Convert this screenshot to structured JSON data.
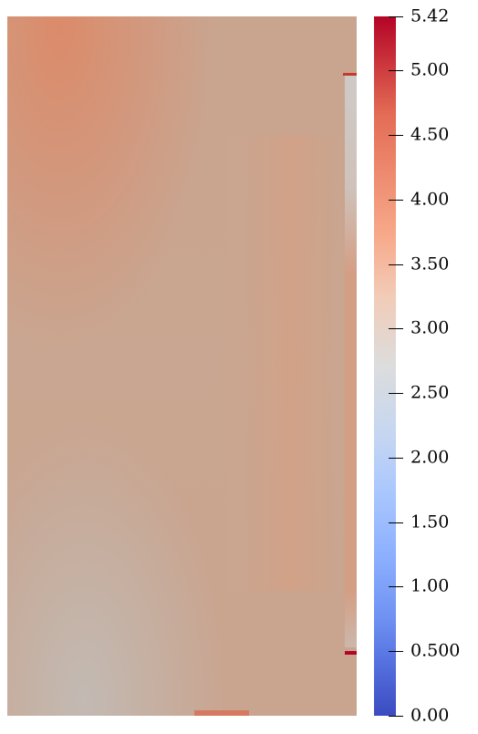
{
  "colorbar": {
    "ticks": [
      {
        "label": "5.42",
        "value": 5.42
      },
      {
        "label": "5.00",
        "value": 5.0
      },
      {
        "label": "4.50",
        "value": 4.5
      },
      {
        "label": "4.00",
        "value": 4.0
      },
      {
        "label": "3.50",
        "value": 3.5
      },
      {
        "label": "3.00",
        "value": 3.0
      },
      {
        "label": "2.50",
        "value": 2.5
      },
      {
        "label": "2.00",
        "value": 2.0
      },
      {
        "label": "1.50",
        "value": 1.5
      },
      {
        "label": "1.00",
        "value": 1.0
      },
      {
        "label": "0.500",
        "value": 0.5
      },
      {
        "label": "0.00",
        "value": 0.0
      }
    ],
    "range": [
      0.0,
      5.42
    ],
    "colormap": [
      "#3b4cc0",
      "#dcdddd",
      "#b40426"
    ]
  },
  "field": {
    "base_color": "#c9a38f"
  }
}
